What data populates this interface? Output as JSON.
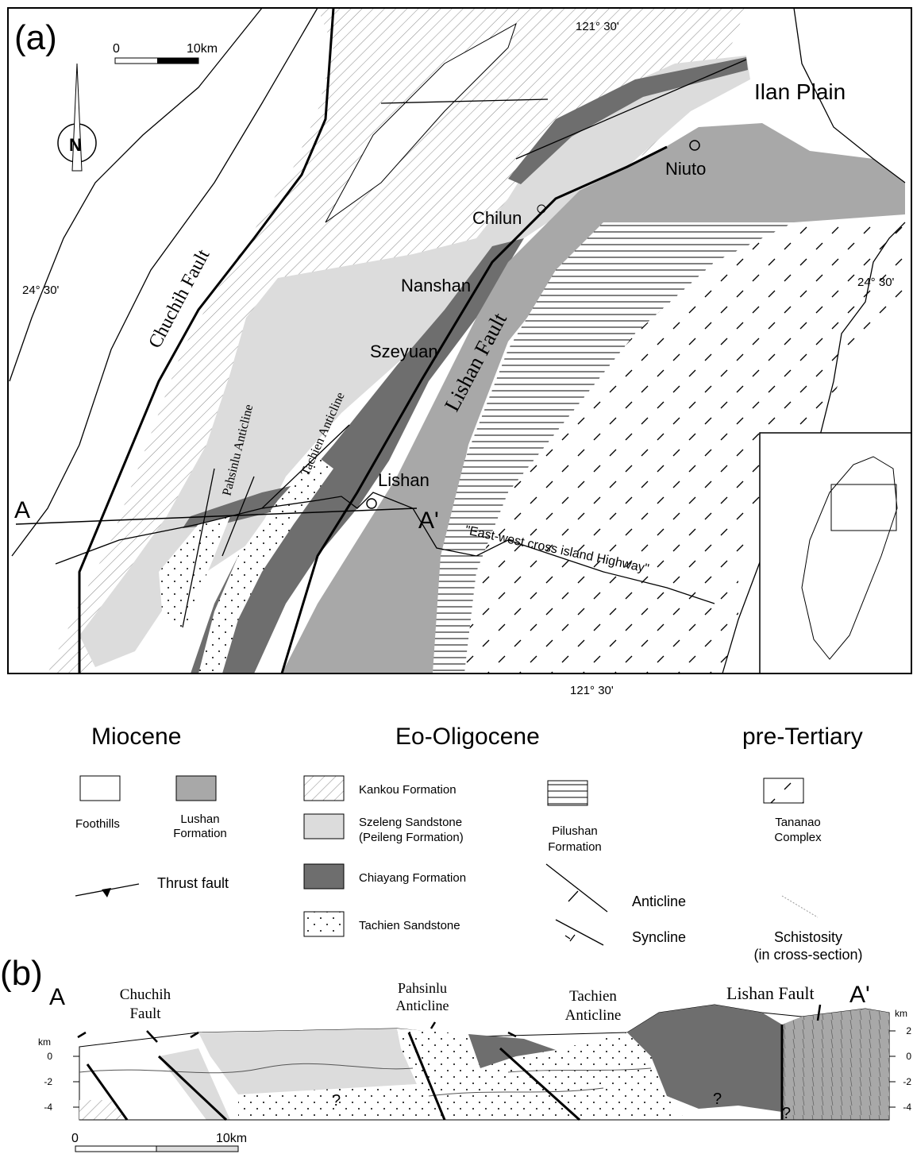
{
  "panel_a": {
    "label": "(a)",
    "scale_bar": {
      "start": "0",
      "end": "10km"
    },
    "north_arrow": "N",
    "graticule": {
      "top": "121° 30'",
      "bottom": "121° 30'",
      "left": "24° 30'",
      "right": "24° 30'"
    },
    "places": {
      "ilan_plain": "Ilan Plain",
      "niuto": "Niuto",
      "chilun": "Chilun",
      "nanshan": "Nanshan",
      "szeyuan": "Szeyuan",
      "lishan": "Lishan"
    },
    "faults": {
      "chuchih": "Chuchih Fault",
      "lishan": "Lishan Fault"
    },
    "folds": {
      "pahsinlu": "Pahsinlu Anticline",
      "tachien": "Tachien Anticline"
    },
    "section": {
      "start": "A",
      "end": "A'"
    },
    "highway": "\"East-west cross island Highway\""
  },
  "legend": {
    "ages": {
      "miocene": "Miocene",
      "eo_oligocene": "Eo-Oligocene",
      "pre_tertiary": "pre-Tertiary"
    },
    "foothills": [
      "Foothills"
    ],
    "lushan": [
      "Lushan",
      "Formation"
    ],
    "kankou": [
      "Kankou Formation"
    ],
    "szeleng": [
      "Szeleng  Sandstone",
      "(Peileng  Formation)"
    ],
    "chiayang": [
      "Chiayang  Formation"
    ],
    "tachien": [
      "Tachien  Sandstone"
    ],
    "pilushan": [
      "Pilushan",
      "Formation"
    ],
    "tananao": [
      "Tananao",
      "Complex"
    ],
    "thrust_fault": "Thrust  fault",
    "anticline": "Anticline",
    "syncline": "Syncline",
    "schistosity": [
      "Schistosity",
      "(in cross-section)"
    ]
  },
  "panel_b": {
    "label": "(b)",
    "ends": {
      "start": "A",
      "end": "A'"
    },
    "labels": {
      "chuchih": [
        "Chuchih",
        "Fault"
      ],
      "pahsinlu": [
        "Pahsinlu",
        "Anticline"
      ],
      "tachien": [
        "Tachien",
        "Anticline"
      ],
      "lishan": "Lishan  Fault"
    },
    "depth_axis": {
      "unit_left": "km",
      "unit_right": "km",
      "left_ticks": [
        0,
        -2,
        -4
      ],
      "right_ticks": [
        2,
        0,
        -2,
        -4
      ]
    },
    "unknown": [
      "?",
      "?",
      "?"
    ],
    "scale_bar": {
      "start": "0",
      "end": "10km"
    }
  }
}
